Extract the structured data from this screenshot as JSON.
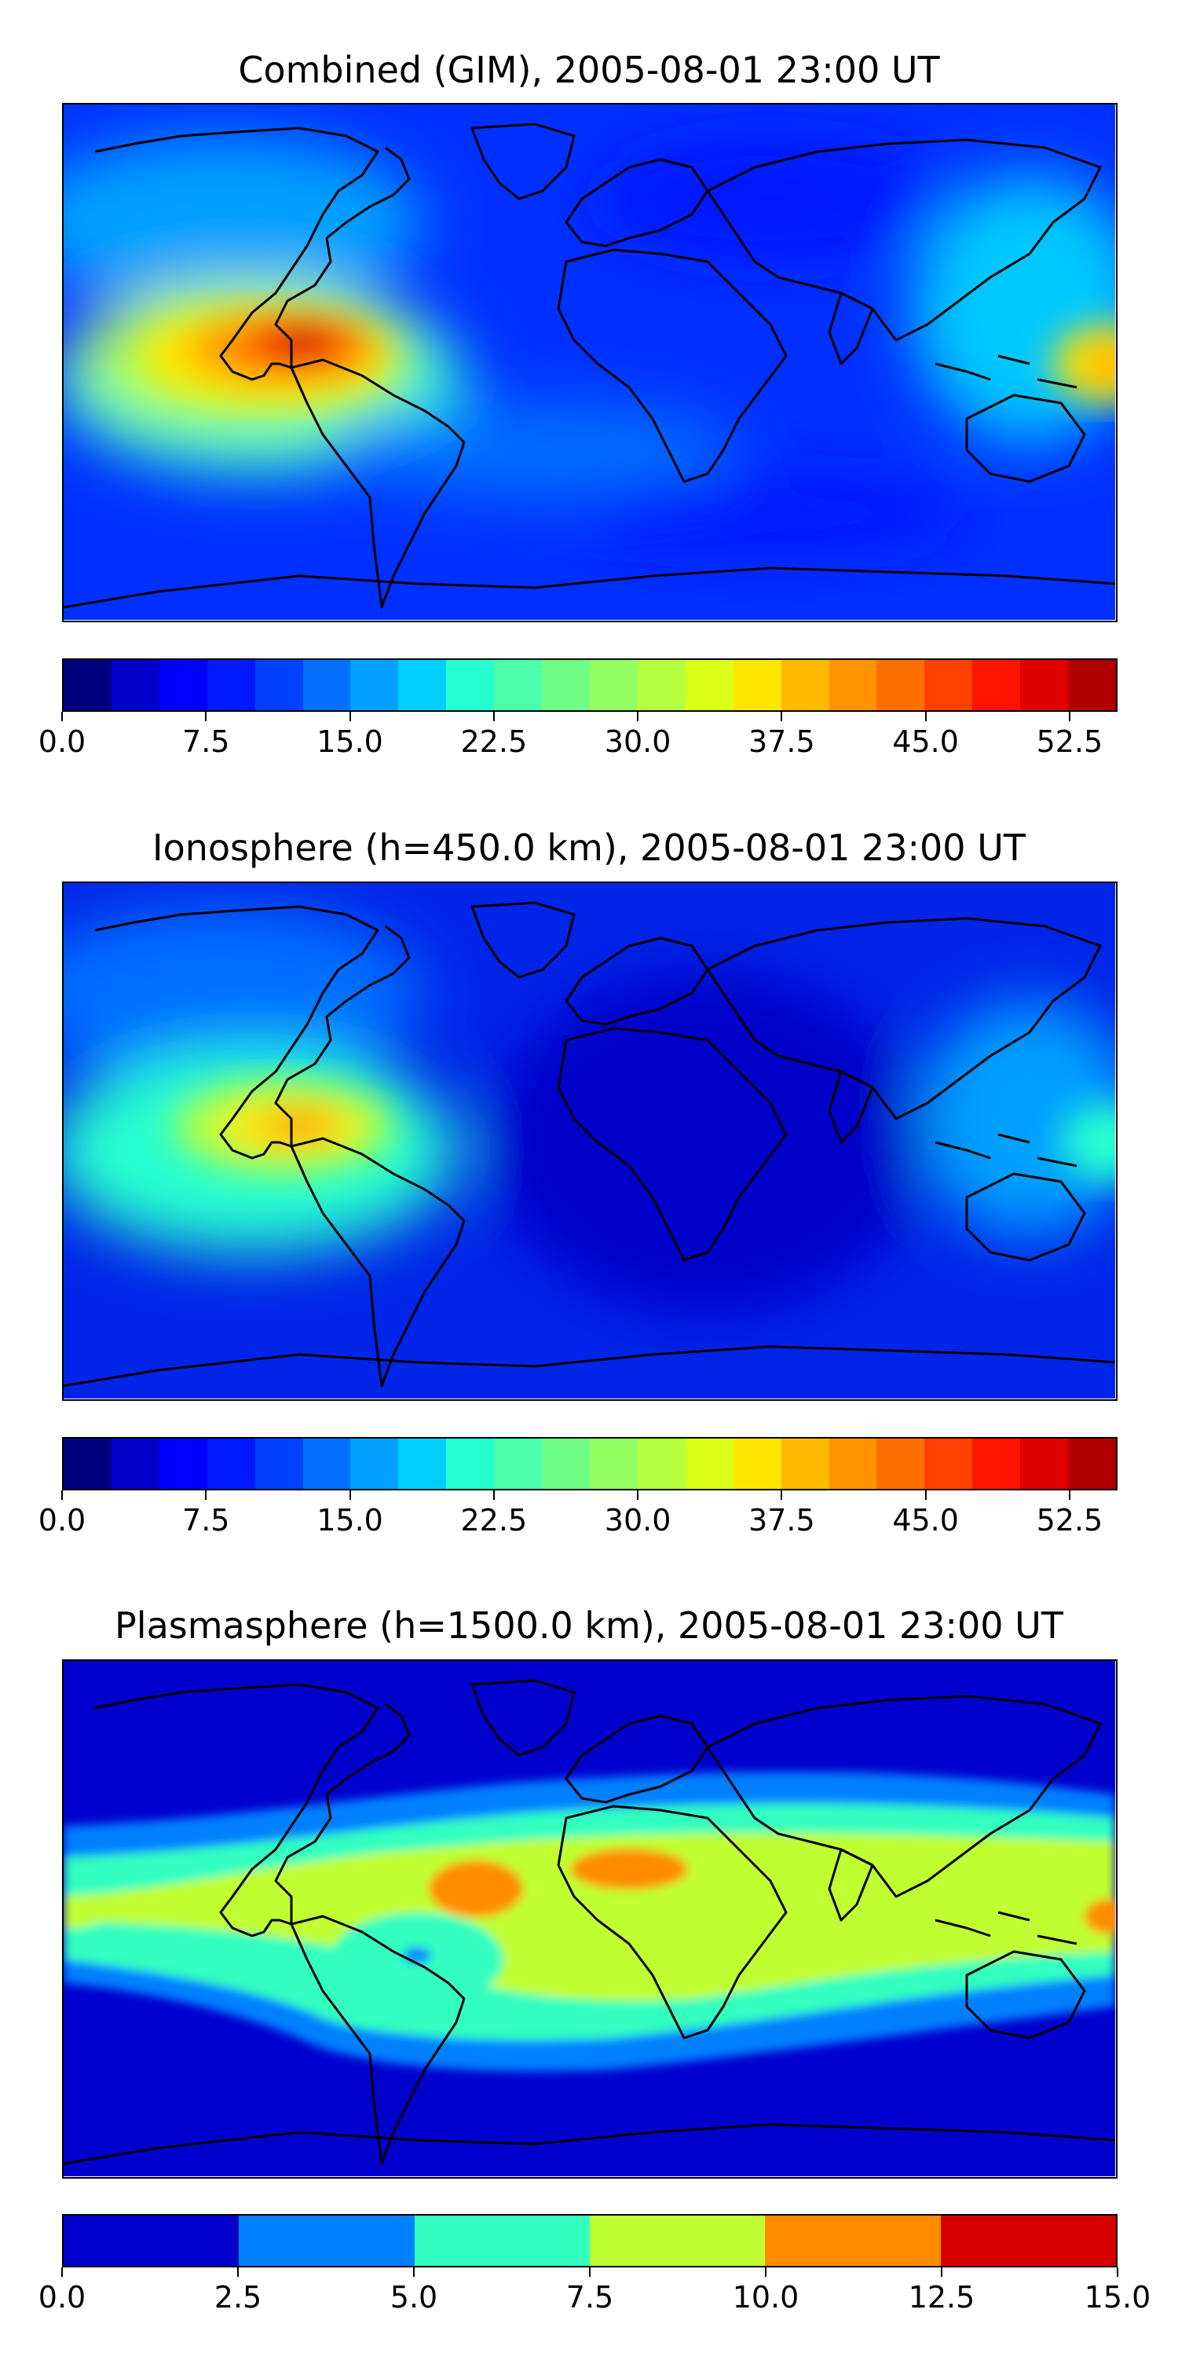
{
  "chart_data": [
    {
      "type": "heatmap",
      "title": "Combined (GIM), 2005-08-01 23:00 UT",
      "projection": "equirectangular world map with coastlines",
      "colormap": "jet",
      "colorbar": {
        "levels": [
          0.0,
          2.5,
          5.0,
          7.5,
          10.0,
          12.5,
          15.0,
          17.5,
          20.0,
          22.5,
          25.0,
          27.5,
          30.0,
          32.5,
          35.0,
          37.5,
          40.0,
          42.5,
          45.0,
          47.5,
          50.0,
          52.5,
          55.0
        ],
        "colors": [
          "#00007f",
          "#0000c8",
          "#0000ff",
          "#0019ff",
          "#0040ff",
          "#0070ff",
          "#00a0ff",
          "#00d0ff",
          "#26ffd0",
          "#4cffaa",
          "#70ff86",
          "#93ff63",
          "#b6ff40",
          "#dcff1a",
          "#ffe600",
          "#ffba00",
          "#ff9400",
          "#ff6e00",
          "#ff4000",
          "#ff1400",
          "#e00000",
          "#b00000"
        ],
        "tick_labels": [
          "0.0",
          "7.5",
          "15.0",
          "22.5",
          "30.0",
          "37.5",
          "45.0",
          "52.5"
        ]
      },
      "features": [
        {
          "region": "East Pacific off Central America",
          "value": 53
        },
        {
          "region": "West Pacific near Indonesia",
          "value": 38
        },
        {
          "region": "Southern mid-latitudes",
          "value": 4
        }
      ]
    },
    {
      "type": "heatmap",
      "title": "Ionosphere  (h=450.0 km), 2005-08-01 23:00 UT",
      "projection": "equirectangular world map with coastlines",
      "colormap": "jet",
      "colorbar": {
        "levels": [
          0.0,
          2.5,
          5.0,
          7.5,
          10.0,
          12.5,
          15.0,
          17.5,
          20.0,
          22.5,
          25.0,
          27.5,
          30.0,
          32.5,
          35.0,
          37.5,
          40.0,
          42.5,
          45.0,
          47.5,
          50.0,
          52.5,
          55.0
        ],
        "colors": [
          "#00007f",
          "#0000c8",
          "#0000ff",
          "#0019ff",
          "#0040ff",
          "#0070ff",
          "#00a0ff",
          "#00d0ff",
          "#26ffd0",
          "#4cffaa",
          "#70ff86",
          "#93ff63",
          "#b6ff40",
          "#dcff1a",
          "#ffe600",
          "#ffba00",
          "#ff9400",
          "#ff6e00",
          "#ff4000",
          "#ff1400",
          "#e00000",
          "#b00000"
        ],
        "tick_labels": [
          "0.0",
          "7.5",
          "15.0",
          "22.5",
          "30.0",
          "37.5",
          "45.0",
          "52.5"
        ]
      },
      "features": [
        {
          "region": "East Pacific off Central America",
          "value": 41
        },
        {
          "region": "West Pacific near Indonesia",
          "value": 25
        },
        {
          "region": "Indian Ocean / Africa",
          "value": 2
        }
      ]
    },
    {
      "type": "heatmap",
      "title": "Plasmasphere (h=1500.0 km), 2005-08-01 23:00 UT",
      "projection": "equirectangular world map with coastlines",
      "colormap": "jet (6 levels)",
      "colorbar": {
        "levels": [
          0.0,
          2.5,
          5.0,
          7.5,
          10.0,
          12.5,
          15.0
        ],
        "colors": [
          "#0000cd",
          "#0080ff",
          "#33ffc0",
          "#c0ff33",
          "#ff8c00",
          "#d60000"
        ],
        "tick_labels": [
          "0.0",
          "2.5",
          "5.0",
          "7.5",
          "10.0",
          "12.5",
          "15.0"
        ]
      },
      "features": [
        {
          "region": "Northern South America",
          "value": 11
        },
        {
          "region": "North Africa",
          "value": 11
        },
        {
          "region": "West Pacific (east edge)",
          "value": 11
        },
        {
          "region": "Equatorial band",
          "value": 8.5
        },
        {
          "region": "Polar regions",
          "value": 1.5
        }
      ]
    }
  ]
}
